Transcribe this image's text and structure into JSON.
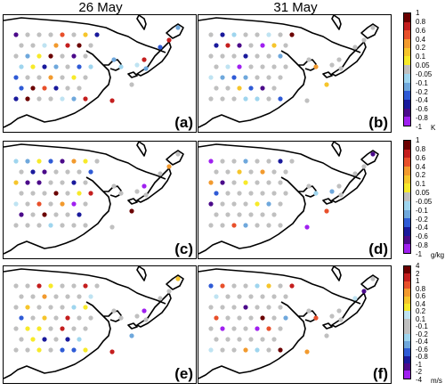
{
  "columns": {
    "left_title": "26 May",
    "right_title": "31 May"
  },
  "panels": [
    {
      "label": "(a)",
      "row": 0,
      "col": 0
    },
    {
      "label": "(b)",
      "row": 0,
      "col": 1
    },
    {
      "label": "(c)",
      "row": 1,
      "col": 0
    },
    {
      "label": "(d)",
      "row": 1,
      "col": 1
    },
    {
      "label": "(e)",
      "row": 2,
      "col": 0
    },
    {
      "label": "(f)",
      "row": 2,
      "col": 1
    }
  ],
  "colorbars": [
    {
      "unit": "K",
      "labels": [
        "1",
        "0.8",
        "0.6",
        "0.4",
        "0.2",
        "0.1",
        "0.05",
        "-0.05",
        "-0.1",
        "-0.2",
        "-0.4",
        "-0.6",
        "-0.8",
        "-1"
      ]
    },
    {
      "unit": "g/kg",
      "labels": [
        "1",
        "0.8",
        "0.6",
        "0.4",
        "0.2",
        "0.1",
        "0.05",
        "-0.05",
        "-0.1",
        "-0.2",
        "-0.4",
        "-0.6",
        "-0.8",
        "-1"
      ]
    },
    {
      "unit": "m/s",
      "labels": [
        "4",
        "2",
        "1",
        "0.8",
        "0.6",
        "0.4",
        "0.2",
        "0.1",
        "-0.1",
        "-0.2",
        "-0.4",
        "-0.6",
        "-0.8",
        "-1",
        "-2",
        "-4"
      ]
    }
  ],
  "colors": {
    "scale": [
      "#6b0000",
      "#c41e1e",
      "#e8502b",
      "#f29a2e",
      "#f6c52c",
      "#f7ea2a",
      "#bfe3f2",
      "#c0c0c0",
      "#9fd5ee",
      "#6fa8dc",
      "#2f5bd6",
      "#1a1a9c",
      "#4b0a8a",
      "#a020f0"
    ]
  }
}
